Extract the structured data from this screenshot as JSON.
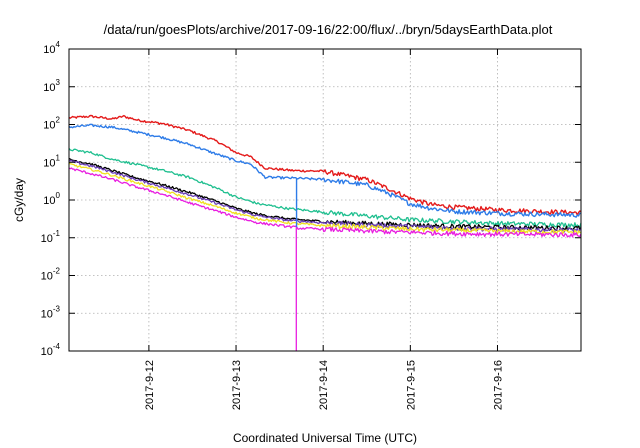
{
  "chart_data": {
    "type": "line",
    "title": "/data/run/goesPlots/archive/2017-09-16/22:00/flux/../bryn/5daysEarthData.plot",
    "xlabel": "Coordinated Universal Time (UTC)",
    "ylabel": "cGy/day",
    "y_scale": "log",
    "ylim": [
      0.0001,
      10000
    ],
    "y_ticks": [
      {
        "base": "10",
        "exp": "-4",
        "value": 0.0001
      },
      {
        "base": "10",
        "exp": "-3",
        "value": 0.001
      },
      {
        "base": "10",
        "exp": "-2",
        "value": 0.01
      },
      {
        "base": "10",
        "exp": "-1",
        "value": 0.1
      },
      {
        "base": "10",
        "exp": "0",
        "value": 1
      },
      {
        "base": "10",
        "exp": "1",
        "value": 10
      },
      {
        "base": "10",
        "exp": "2",
        "value": 100
      },
      {
        "base": "10",
        "exp": "3",
        "value": 1000
      },
      {
        "base": "10",
        "exp": "4",
        "value": 10000
      }
    ],
    "xlim": [
      "2017-09-11T02:00",
      "2017-09-16T23:00"
    ],
    "x_ticks": [
      "2017-9-12",
      "2017-9-13",
      "2017-9-14",
      "2017-9-15",
      "2017-9-16"
    ],
    "x_tick_dates": [
      "2017-09-12",
      "2017-09-13",
      "2017-09-14",
      "2017-09-15",
      "2017-09-16"
    ],
    "grid": true,
    "series": [
      {
        "color": "#e41a1a",
        "points": [
          [
            "2017-09-11T02:00",
            150
          ],
          [
            "2017-09-11T08:00",
            165
          ],
          [
            "2017-09-11T14:00",
            140
          ],
          [
            "2017-09-11T17:00",
            165
          ],
          [
            "2017-09-11T21:00",
            130
          ],
          [
            "2017-09-12T04:00",
            105
          ],
          [
            "2017-09-12T11:00",
            70
          ],
          [
            "2017-09-12T19:00",
            35
          ],
          [
            "2017-09-13T00:00",
            18
          ],
          [
            "2017-09-13T04:00",
            14
          ],
          [
            "2017-09-13T08:00",
            7
          ],
          [
            "2017-09-13T16:00",
            6
          ],
          [
            "2017-09-14T00:00",
            5.8
          ],
          [
            "2017-09-14T06:00",
            4.5
          ],
          [
            "2017-09-14T12:00",
            3.5
          ],
          [
            "2017-09-14T18:00",
            2
          ],
          [
            "2017-09-15T00:00",
            1.1
          ],
          [
            "2017-09-15T06:00",
            0.75
          ],
          [
            "2017-09-15T12:00",
            0.65
          ],
          [
            "2017-09-16T00:00",
            0.55
          ],
          [
            "2017-09-16T12:00",
            0.5
          ],
          [
            "2017-09-16T23:00",
            0.46
          ]
        ]
      },
      {
        "color": "#2e7ce8",
        "points": [
          [
            "2017-09-11T02:00",
            85
          ],
          [
            "2017-09-11T08:00",
            95
          ],
          [
            "2017-09-11T14:00",
            85
          ],
          [
            "2017-09-11T20:00",
            65
          ],
          [
            "2017-09-12T04:00",
            45
          ],
          [
            "2017-09-12T11:00",
            30
          ],
          [
            "2017-09-12T19:00",
            16
          ],
          [
            "2017-09-13T00:00",
            11
          ],
          [
            "2017-09-13T04:00",
            9
          ],
          [
            "2017-09-13T08:00",
            4
          ],
          [
            "2017-09-13T16:00",
            3.8
          ],
          [
            "2017-09-14T00:00",
            3.5
          ],
          [
            "2017-09-14T06:00",
            3
          ],
          [
            "2017-09-14T12:00",
            2.5
          ],
          [
            "2017-09-14T18:00",
            1.5
          ],
          [
            "2017-09-15T00:00",
            0.8
          ],
          [
            "2017-09-15T06:00",
            0.6
          ],
          [
            "2017-09-15T12:00",
            0.5
          ],
          [
            "2017-09-16T00:00",
            0.45
          ],
          [
            "2017-09-16T12:00",
            0.42
          ],
          [
            "2017-09-16T23:00",
            0.4
          ]
        ]
      },
      {
        "color": "#1fbf8f",
        "points": [
          [
            "2017-09-11T02:00",
            22
          ],
          [
            "2017-09-11T08:00",
            18
          ],
          [
            "2017-09-11T14:00",
            12
          ],
          [
            "2017-09-11T20:00",
            9
          ],
          [
            "2017-09-12T04:00",
            6
          ],
          [
            "2017-09-12T11:00",
            4
          ],
          [
            "2017-09-12T19:00",
            2
          ],
          [
            "2017-09-13T00:00",
            1.2
          ],
          [
            "2017-09-13T06:00",
            0.8
          ],
          [
            "2017-09-13T14:00",
            0.6
          ],
          [
            "2017-09-14T00:00",
            0.48
          ],
          [
            "2017-09-14T12:00",
            0.38
          ],
          [
            "2017-09-15T00:00",
            0.3
          ],
          [
            "2017-09-15T12:00",
            0.27
          ],
          [
            "2017-09-16T00:00",
            0.24
          ],
          [
            "2017-09-16T23:00",
            0.22
          ]
        ]
      },
      {
        "color": "#000000",
        "points": [
          [
            "2017-09-11T02:00",
            12
          ],
          [
            "2017-09-11T08:00",
            9
          ],
          [
            "2017-09-11T14:00",
            6
          ],
          [
            "2017-09-11T20:00",
            4
          ],
          [
            "2017-09-12T04:00",
            2.5
          ],
          [
            "2017-09-12T11:00",
            1.6
          ],
          [
            "2017-09-12T19:00",
            0.9
          ],
          [
            "2017-09-13T00:00",
            0.6
          ],
          [
            "2017-09-13T06:00",
            0.42
          ],
          [
            "2017-09-13T14:00",
            0.32
          ],
          [
            "2017-09-14T00:00",
            0.27
          ],
          [
            "2017-09-14T12:00",
            0.24
          ],
          [
            "2017-09-15T00:00",
            0.22
          ],
          [
            "2017-09-15T12:00",
            0.2
          ],
          [
            "2017-09-16T00:00",
            0.19
          ],
          [
            "2017-09-16T23:00",
            0.18
          ]
        ]
      },
      {
        "color": "#6a3fb5",
        "points": [
          [
            "2017-09-11T02:00",
            11
          ],
          [
            "2017-09-11T08:00",
            8
          ],
          [
            "2017-09-11T14:00",
            5.5
          ],
          [
            "2017-09-11T20:00",
            3.6
          ],
          [
            "2017-09-12T04:00",
            2.2
          ],
          [
            "2017-09-12T11:00",
            1.4
          ],
          [
            "2017-09-12T19:00",
            0.8
          ],
          [
            "2017-09-13T00:00",
            0.55
          ],
          [
            "2017-09-13T06:00",
            0.38
          ],
          [
            "2017-09-13T14:00",
            0.29
          ],
          [
            "2017-09-14T00:00",
            0.25
          ],
          [
            "2017-09-14T12:00",
            0.22
          ],
          [
            "2017-09-15T00:00",
            0.2
          ],
          [
            "2017-09-15T12:00",
            0.18
          ],
          [
            "2017-09-16T00:00",
            0.17
          ],
          [
            "2017-09-16T23:00",
            0.16
          ]
        ]
      },
      {
        "color": "#f0e020",
        "points": [
          [
            "2017-09-11T02:00",
            9
          ],
          [
            "2017-09-11T08:00",
            6.5
          ],
          [
            "2017-09-11T14:00",
            4.5
          ],
          [
            "2017-09-11T20:00",
            3
          ],
          [
            "2017-09-12T04:00",
            1.8
          ],
          [
            "2017-09-12T11:00",
            1.1
          ],
          [
            "2017-09-12T19:00",
            0.65
          ],
          [
            "2017-09-13T00:00",
            0.45
          ],
          [
            "2017-09-13T06:00",
            0.32
          ],
          [
            "2017-09-13T14:00",
            0.25
          ],
          [
            "2017-09-14T00:00",
            0.21
          ],
          [
            "2017-09-14T12:00",
            0.19
          ],
          [
            "2017-09-15T00:00",
            0.17
          ],
          [
            "2017-09-15T12:00",
            0.16
          ],
          [
            "2017-09-16T00:00",
            0.15
          ],
          [
            "2017-09-16T23:00",
            0.14
          ]
        ]
      },
      {
        "color": "#e81ee0",
        "points": [
          [
            "2017-09-11T02:00",
            7
          ],
          [
            "2017-09-11T08:00",
            5
          ],
          [
            "2017-09-11T14:00",
            3.5
          ],
          [
            "2017-09-11T20:00",
            2.3
          ],
          [
            "2017-09-12T04:00",
            1.4
          ],
          [
            "2017-09-12T11:00",
            0.85
          ],
          [
            "2017-09-12T19:00",
            0.5
          ],
          [
            "2017-09-13T00:00",
            0.35
          ],
          [
            "2017-09-13T06:00",
            0.25
          ],
          [
            "2017-09-13T14:00",
            0.2
          ],
          [
            "2017-09-13T16:30",
            0.19
          ],
          [
            "2017-09-13T16:35",
            0.0001
          ],
          [
            "2017-09-13T16:40",
            0.18
          ],
          [
            "2017-09-14T00:00",
            0.17
          ],
          [
            "2017-09-14T12:00",
            0.15
          ],
          [
            "2017-09-15T00:00",
            0.14
          ],
          [
            "2017-09-15T12:00",
            0.13
          ],
          [
            "2017-09-16T00:00",
            0.125
          ],
          [
            "2017-09-16T23:00",
            0.12
          ]
        ]
      }
    ],
    "spikes": [
      {
        "color": "#2e7ce8",
        "x": "2017-09-13T16:40",
        "from": 0.19,
        "to": 3.6
      }
    ]
  }
}
